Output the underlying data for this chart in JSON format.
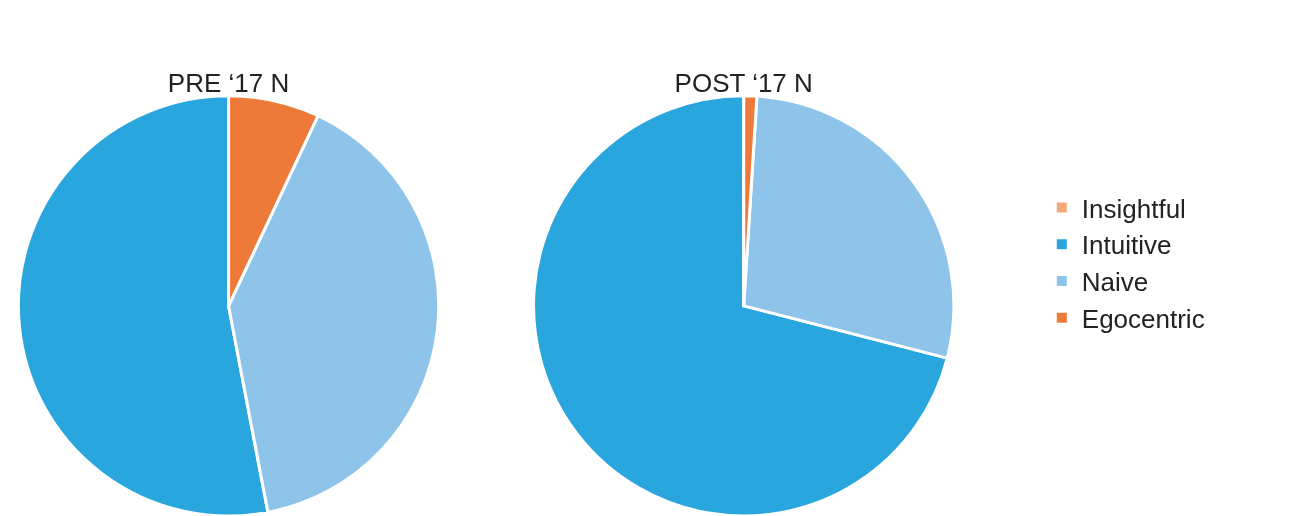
{
  "chart_data": {
    "type": "pie",
    "categories": [
      "Insightful",
      "Intuitive",
      "Naive",
      "Egocentric"
    ],
    "colors": [
      "#f4a97b",
      "#29a6de",
      "#8ec4ea",
      "#ee7a3a"
    ],
    "legend": "right",
    "series": [
      {
        "name": "PRE ‘17 N",
        "values": [
          0,
          53,
          40,
          7
        ]
      },
      {
        "name": "POST ‘17 N",
        "values": [
          0,
          71,
          28,
          1
        ]
      }
    ]
  }
}
